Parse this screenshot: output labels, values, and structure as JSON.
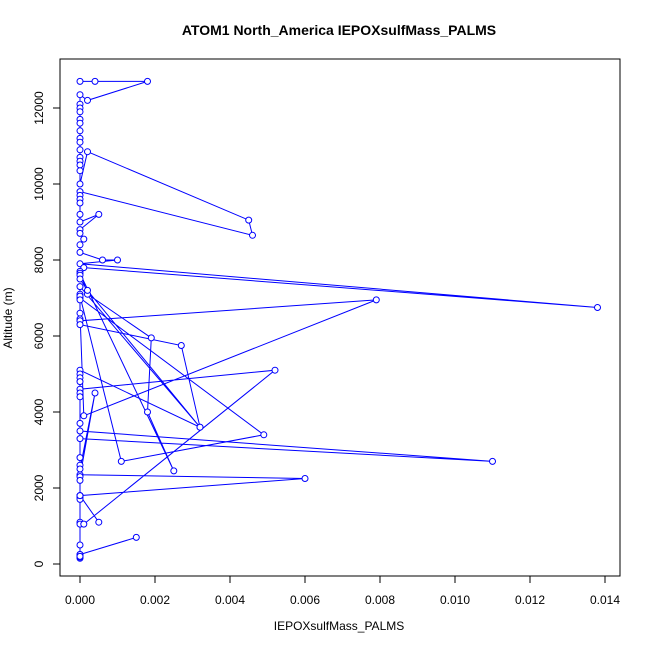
{
  "chart_data": {
    "type": "line",
    "title": "ATOM1 North_America IEPOXsulfMass_PALMS",
    "xlabel": "IEPOXsulfMass_PALMS",
    "ylabel": "Altitude (m)",
    "xlim": [
      -0.0005,
      0.0145
    ],
    "ylim": [
      -200,
      13000
    ],
    "xticks": [
      0.0,
      0.002,
      0.004,
      0.006,
      0.008,
      0.01,
      0.012,
      0.014
    ],
    "xtick_labels": [
      "0.000",
      "0.002",
      "0.004",
      "0.006",
      "0.008",
      "0.010",
      "0.012",
      "0.014"
    ],
    "yticks": [
      0,
      2000,
      4000,
      6000,
      8000,
      10000,
      12000
    ],
    "ytick_labels": [
      "0",
      "2000",
      "4000",
      "6000",
      "8000",
      "10000",
      "12000"
    ],
    "grid": false,
    "color": "#0000ff",
    "marker": "open-circle",
    "series": [
      {
        "x": [
          0.0,
          0.0004,
          0.0018,
          0.0002,
          0.0,
          0.0,
          0.0,
          0.0,
          0.0,
          0.0,
          0.0,
          0.0,
          0.0,
          0.0,
          0.0,
          0.0,
          0.0,
          0.0,
          0.0,
          0.0002,
          0.0045,
          0.0046,
          0.0,
          0.0,
          0.0,
          0.0,
          0.0,
          0.0,
          0.0005,
          0.0,
          0.0,
          0.0001,
          0.0,
          0.0,
          0.0006,
          0.001,
          0.0,
          0.0138,
          0.0001,
          0.0,
          0.0002,
          0.0019,
          0.0018,
          0.0025,
          0.0,
          0.0,
          0.0,
          0.0002,
          0.0032,
          0.0,
          0.0,
          0.0,
          0.0049,
          0.0011,
          0.0,
          0.0,
          0.0,
          0.0079,
          0.0001,
          0.0,
          0.0,
          0.0,
          0.0,
          0.0027,
          0.0032,
          0.0,
          0.0,
          0.0,
          0.0,
          0.0,
          0.006,
          0.0,
          0.0,
          0.0,
          0.0,
          0.0,
          0.0001,
          0.0052,
          0.0,
          0.0,
          0.0,
          0.0,
          0.0,
          0.011,
          0.0,
          0.0,
          0.0,
          0.0,
          0.0004,
          0.0,
          0.0,
          0.0,
          0.0005,
          0.0,
          0.0,
          0.0,
          0.0,
          0.0015,
          0.0,
          0.0,
          0.0,
          0.0,
          0.0
        ],
        "y": [
          12700,
          12700,
          12700,
          12200,
          12350,
          12100,
          12000,
          11900,
          11700,
          11600,
          11400,
          11200,
          11100,
          10900,
          10700,
          10600,
          10500,
          10350,
          10000,
          10850,
          9050,
          8650,
          9800,
          9700,
          9600,
          9500,
          9200,
          9000,
          9200,
          8800,
          8700,
          8550,
          8400,
          8200,
          8000,
          8000,
          7900,
          6750,
          7800,
          7700,
          7100,
          5950,
          4000,
          2450,
          7650,
          7600,
          7500,
          7200,
          3600,
          7300,
          7100,
          7000,
          3400,
          2700,
          7050,
          6950,
          6400,
          6950,
          3900,
          6600,
          6450,
          6400,
          6300,
          5750,
          3600,
          5100,
          5000,
          4900,
          4800,
          2350,
          2250,
          1800,
          1750,
          1700,
          1100,
          1050,
          1050,
          5100,
          4600,
          4500,
          4400,
          3700,
          3500,
          2700,
          3300,
          2800,
          2600,
          2500,
          4500,
          2300,
          2200,
          1800,
          1100,
          1800,
          500,
          200,
          250,
          700,
          250,
          200,
          150,
          180,
          200
        ]
      }
    ]
  }
}
